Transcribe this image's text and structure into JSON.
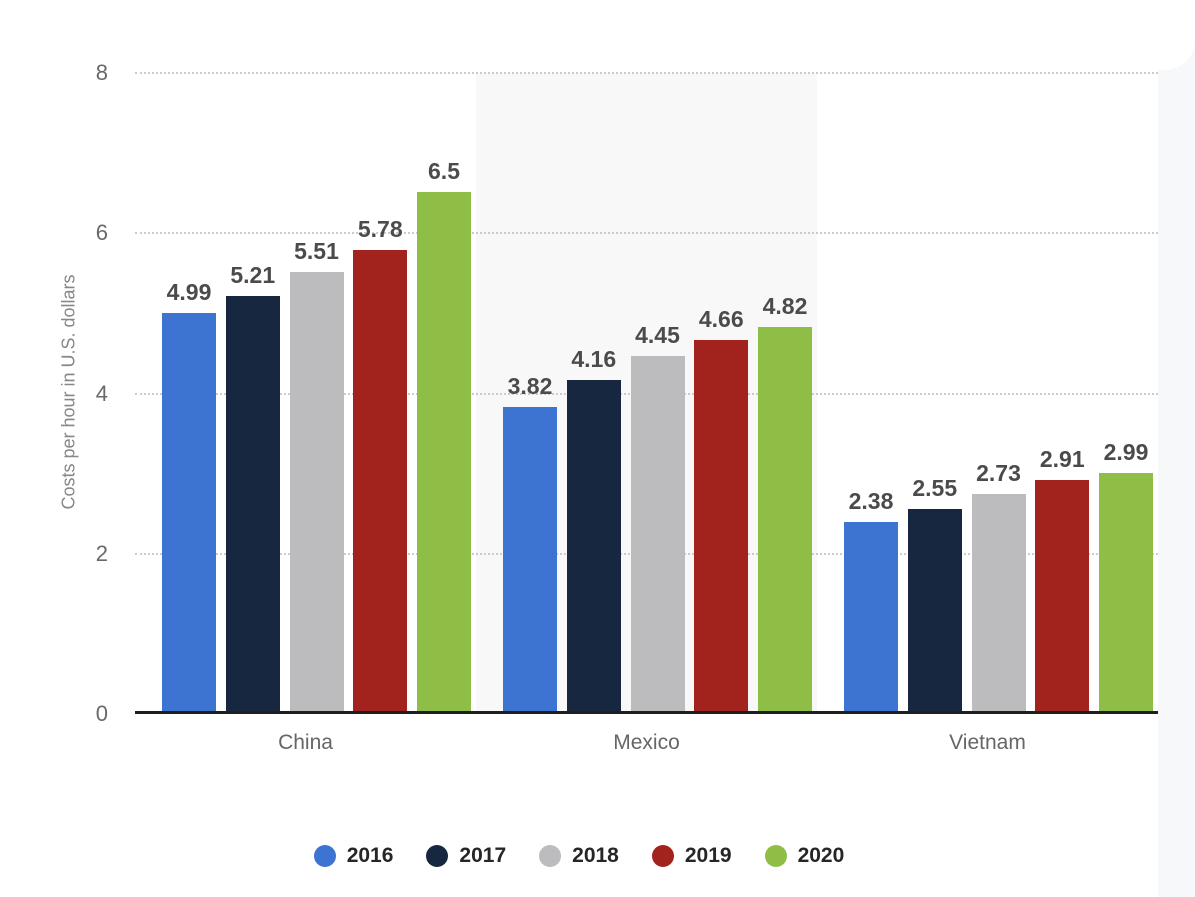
{
  "chart_data": {
    "type": "bar",
    "title": "",
    "ylabel": "Costs per hour in U.S. dollars",
    "ylim": [
      0,
      8
    ],
    "yticks": [
      0,
      2,
      4,
      6,
      8
    ],
    "grid": "horizontal-dotted",
    "legend_position": "bottom",
    "categories": [
      "China",
      "Mexico",
      "Vietnam"
    ],
    "series": [
      {
        "name": "2016",
        "color": "#3E74D1",
        "values": [
          4.99,
          3.82,
          2.38
        ],
        "labels": [
          "4.99",
          "3.82",
          "2.38"
        ]
      },
      {
        "name": "2017",
        "color": "#17273F",
        "values": [
          5.21,
          4.16,
          2.55
        ],
        "labels": [
          "5.21",
          "4.16",
          "2.55"
        ]
      },
      {
        "name": "2018",
        "color": "#BCBCBE",
        "values": [
          5.51,
          4.45,
          2.73
        ],
        "labels": [
          "5.51",
          "4.45",
          "2.73"
        ]
      },
      {
        "name": "2019",
        "color": "#A2231E",
        "values": [
          5.78,
          4.66,
          2.91
        ],
        "labels": [
          "5.78",
          "4.66",
          "2.91"
        ]
      },
      {
        "name": "2020",
        "color": "#8EBE46",
        "values": [
          6.5,
          4.82,
          2.99
        ],
        "labels": [
          "6.5",
          "4.82",
          "2.99"
        ]
      }
    ],
    "highlight": {
      "category": "Mexico",
      "color": "#F8F8F8"
    }
  }
}
